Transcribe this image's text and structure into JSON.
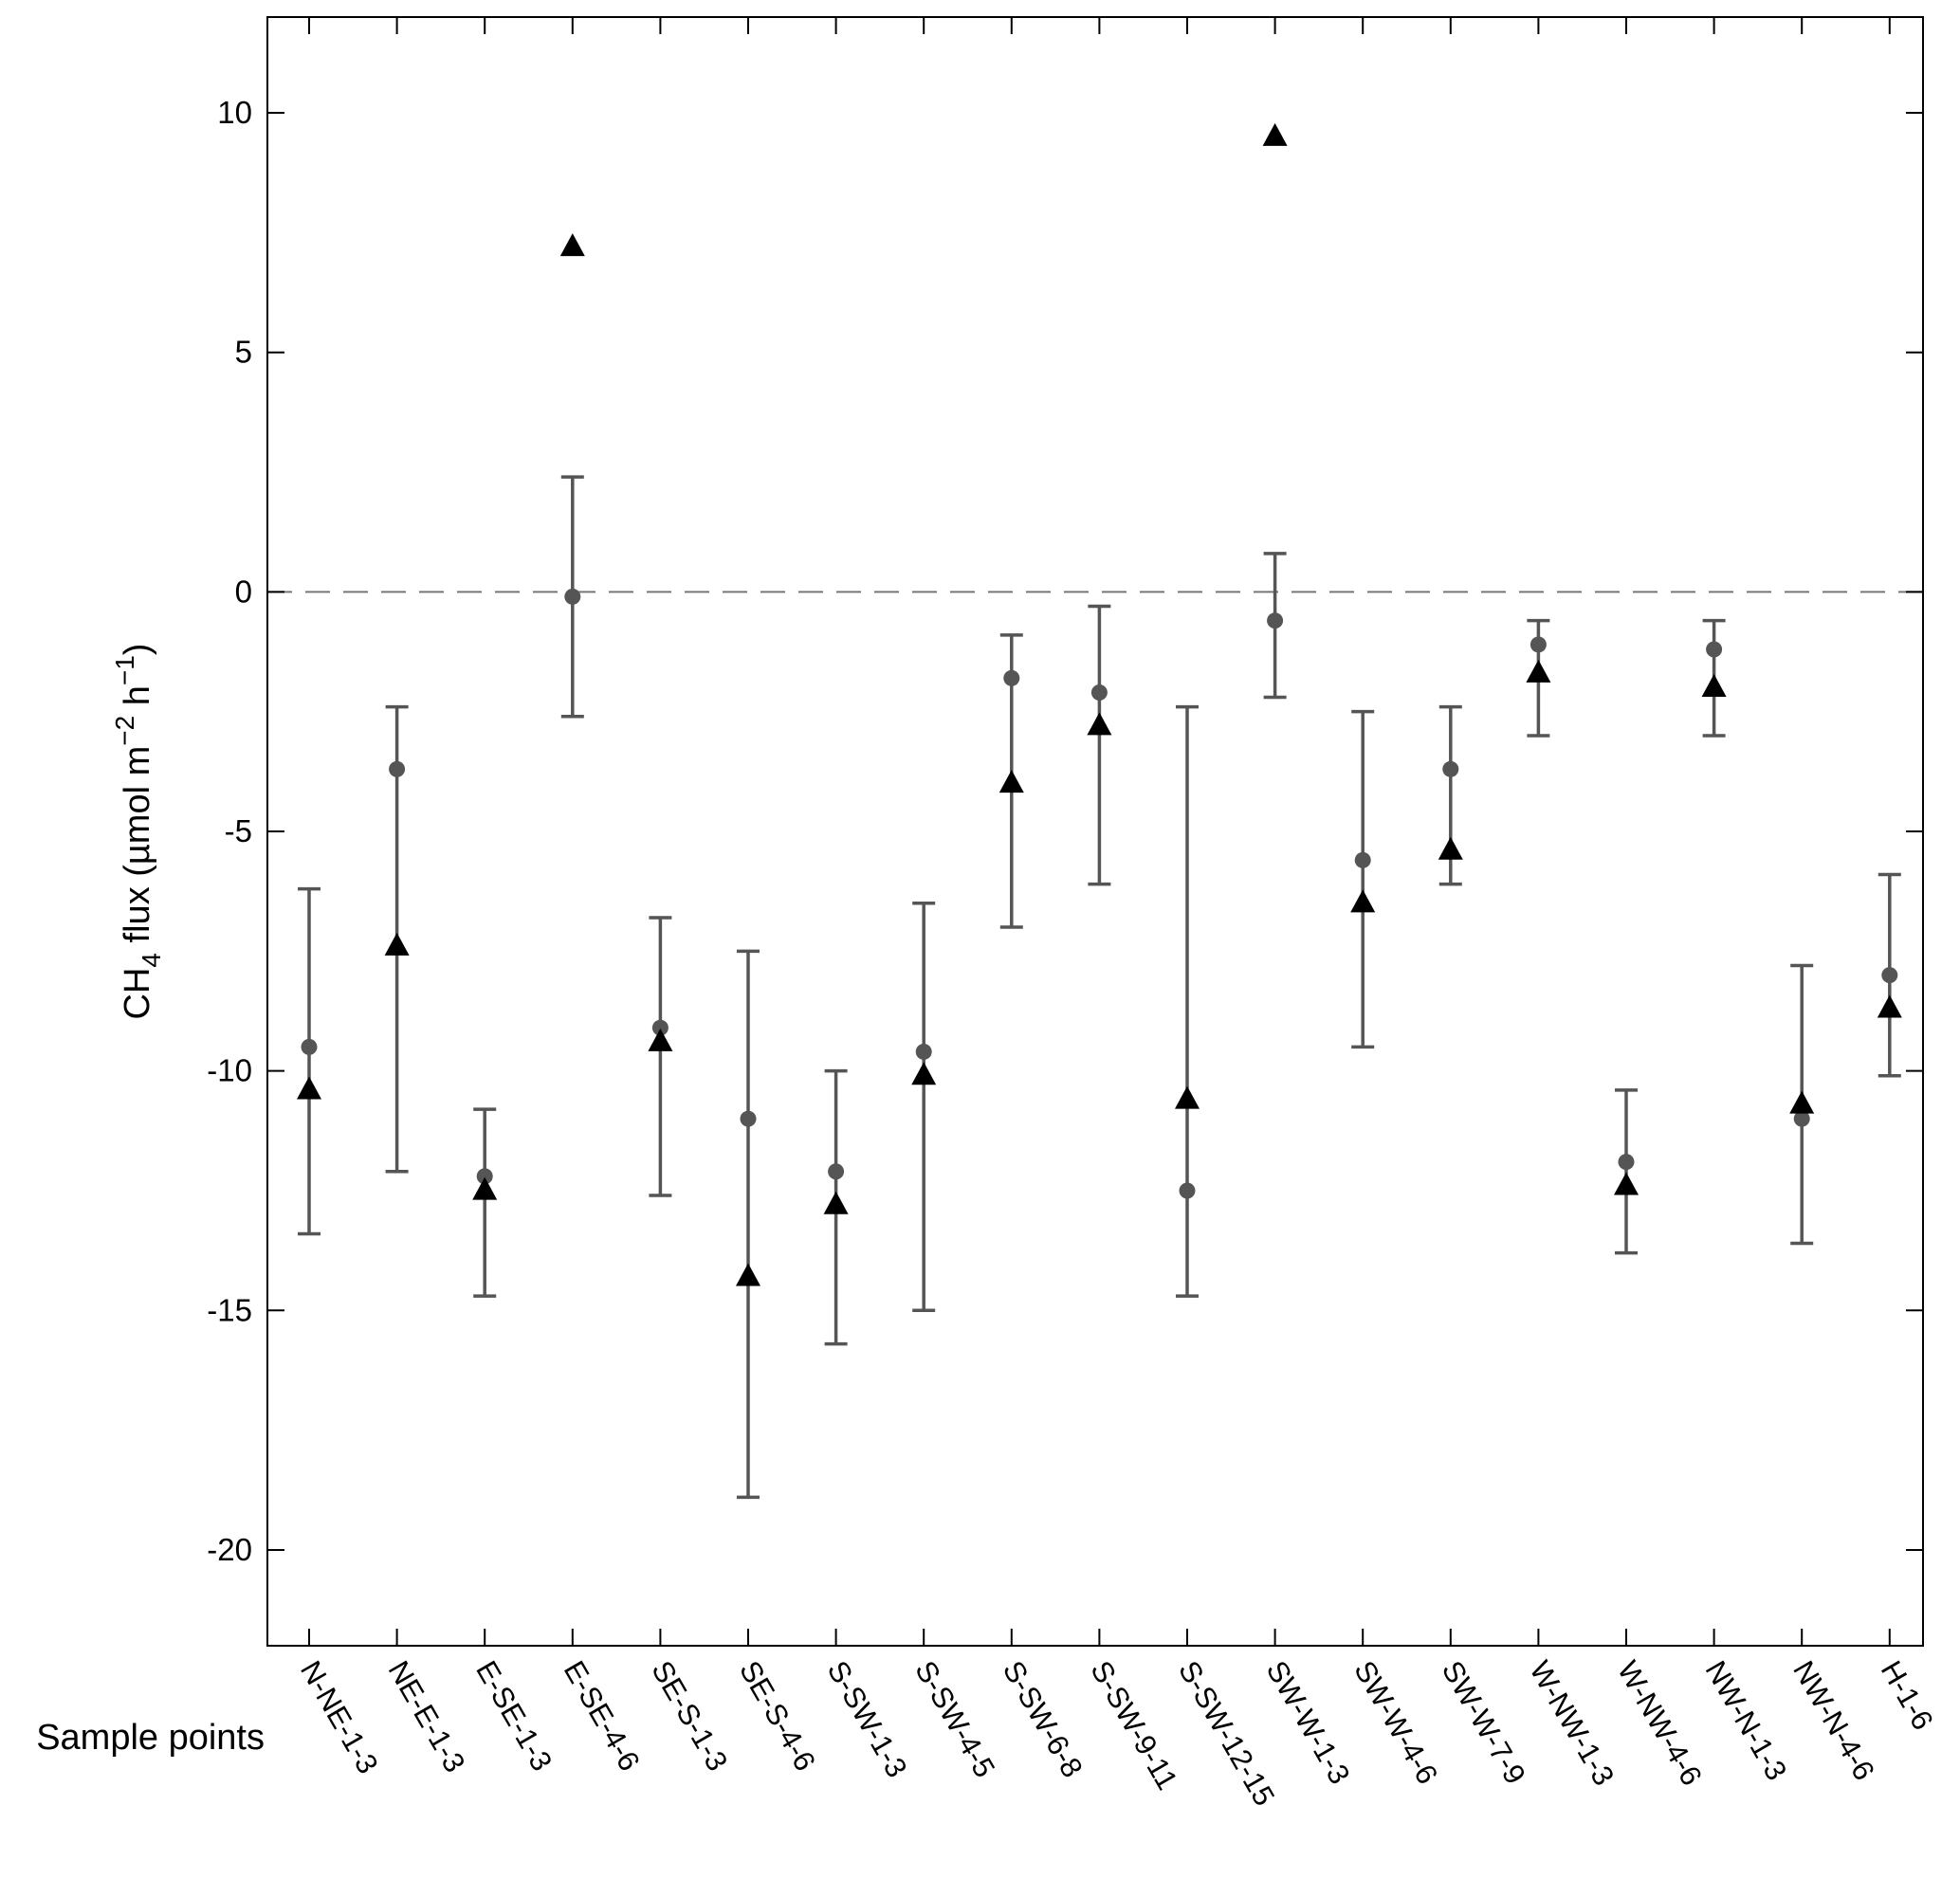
{
  "chart_data": {
    "type": "scatter",
    "ylabel": {
      "prefix": "CH",
      "subscript": "4",
      "main": " flux (µmol m",
      "exp1": "−2",
      "mid": " h",
      "exp2": "−1",
      "suffix": ")"
    },
    "xlabel": "Sample points",
    "ylim": [
      -22,
      12
    ],
    "yticks": [
      10,
      5,
      0,
      -5,
      -10,
      -15,
      -20
    ],
    "ytick_labels": [
      "10",
      "5",
      "0",
      "-5",
      "-10",
      "-15",
      "-20"
    ],
    "reference_line": {
      "y": 0,
      "style": "dashed"
    },
    "categories": [
      "N-NE-1-3",
      "NE-E-1-3",
      "E-SE-1-3",
      "E-SE-4-6",
      "SE-S-1-3",
      "SE-S-4-6",
      "S-SW-1-3",
      "S-SW-4-5",
      "S-SW-6-8",
      "S-SW-9-11",
      "S-SW-12-15",
      "SW-W-1-3",
      "SW-W-4-6",
      "SW-W-7-9",
      "W-NW-1-3",
      "W-NW-4-6",
      "NW-N-1-3",
      "NW-N-4-6",
      "H-1-6"
    ],
    "series": [
      {
        "marker": "circle",
        "color": "#555555",
        "values": [
          -9.5,
          -3.7,
          -12.2,
          -0.1,
          -9.1,
          -11.0,
          -12.1,
          -9.6,
          -1.8,
          -2.1,
          -12.5,
          -0.6,
          -5.6,
          -3.7,
          -1.1,
          -11.9,
          -1.2,
          -11.0,
          -8.0
        ],
        "error_low": [
          -13.4,
          -12.1,
          -14.7,
          -2.6,
          -12.6,
          -18.9,
          -15.7,
          -15.0,
          -7.0,
          -6.1,
          -14.7,
          -2.2,
          -9.5,
          -6.1,
          -3.0,
          -13.8,
          -3.0,
          -13.6,
          -10.1
        ],
        "error_high": [
          -6.2,
          -2.4,
          -10.8,
          2.4,
          -6.8,
          -7.5,
          -10.0,
          -6.5,
          -0.9,
          -0.3,
          -2.4,
          0.8,
          -2.5,
          -2.4,
          -0.6,
          -10.4,
          -0.6,
          -7.8,
          -5.9
        ]
      },
      {
        "marker": "triangle",
        "color": "#000000",
        "values": [
          -10.4,
          -7.4,
          -12.5,
          7.2,
          -9.4,
          -14.3,
          -12.8,
          -10.1,
          -4.0,
          -2.8,
          -10.6,
          9.5,
          -6.5,
          -5.4,
          -1.7,
          -12.4,
          -2.0,
          -10.7,
          -8.7
        ]
      }
    ],
    "grid": false,
    "colors": {
      "error_bar": "#555555",
      "circle": "#555555",
      "triangle": "#000000",
      "axis": "#000000",
      "zero_line": "#777777"
    }
  }
}
